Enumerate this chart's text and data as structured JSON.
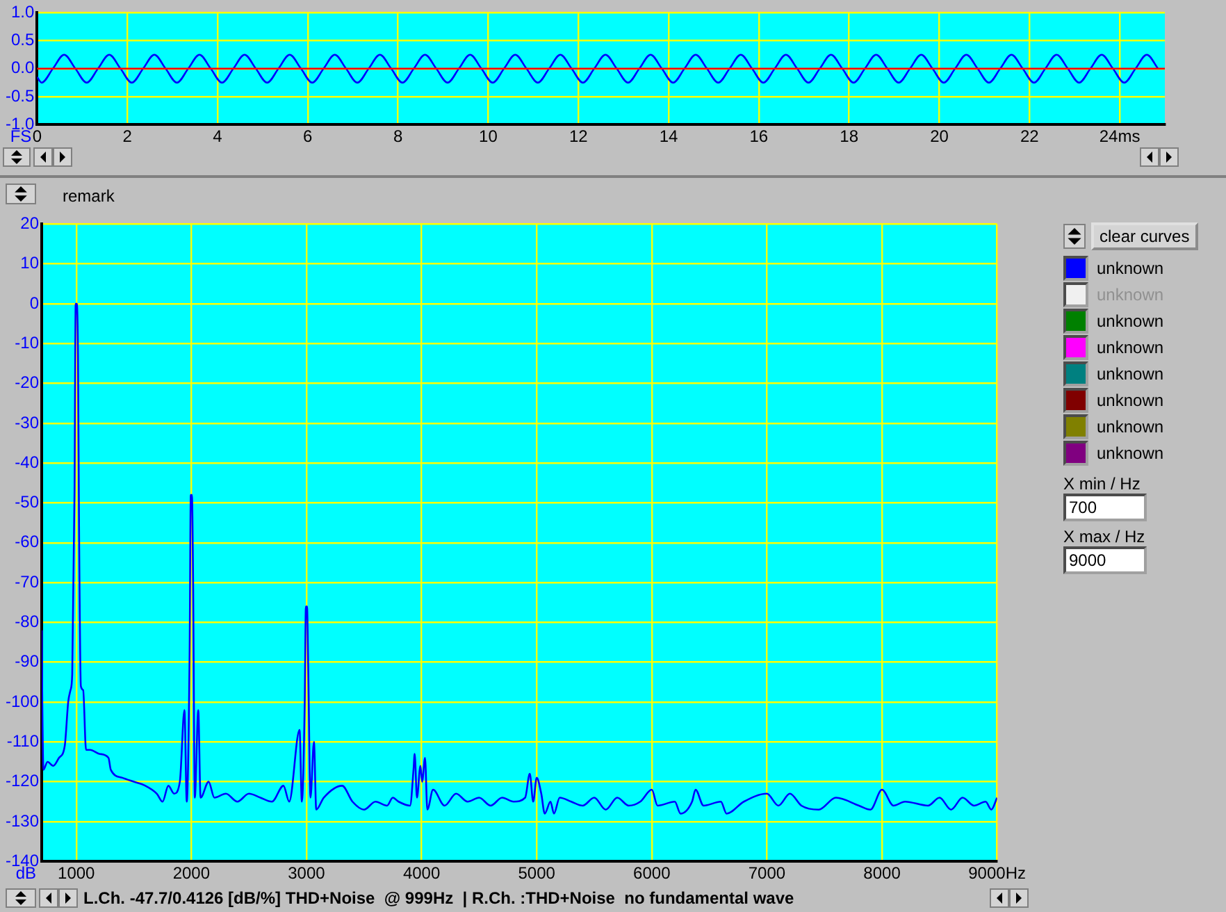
{
  "chart_data": [
    {
      "type": "line",
      "ylabel": "FS",
      "xlim": [
        0,
        25
      ],
      "xticks": [
        0,
        2,
        4,
        6,
        8,
        10,
        12,
        14,
        16,
        18,
        20,
        22,
        {
          "value": 24,
          "label": "24ms"
        }
      ],
      "ylim": [
        -1,
        1
      ],
      "yticks": [
        {
          "value": -1,
          "label": "-1.0"
        },
        {
          "value": -0.5,
          "label": "-0.5"
        },
        {
          "value": 0,
          "label": "0.0"
        },
        {
          "value": 0.5,
          "label": "0.5"
        },
        {
          "value": 1,
          "label": "1.0"
        }
      ],
      "grid": true,
      "ref_lines": [
        {
          "axis": "y",
          "value": 0,
          "color": "#ff0000"
        }
      ],
      "series": [
        {
          "color": "#0000ff",
          "x": [
            0,
            0.1,
            0.35,
            0.6,
            0.85,
            1.1,
            1.35,
            1.6,
            1.85,
            2.1,
            2.35,
            2.6,
            2.85,
            3.1,
            3.35,
            3.6,
            3.85,
            4.1,
            4.35,
            4.6,
            4.85,
            5.1,
            5.35,
            5.6,
            5.85,
            6.1,
            6.35,
            6.6,
            6.85,
            7.1,
            7.35,
            7.6,
            7.85,
            8.1,
            8.35,
            8.6,
            8.85,
            9.1,
            9.35,
            9.6,
            9.85,
            10.1,
            10.35,
            10.6,
            10.85,
            11.1,
            11.35,
            11.6,
            11.85,
            12.1,
            12.35,
            12.6,
            12.85,
            13.1,
            13.35,
            13.6,
            13.85,
            14.1,
            14.35,
            14.6,
            14.85,
            15.1,
            15.35,
            15.6,
            15.85,
            16.1,
            16.35,
            16.6,
            16.85,
            17.1,
            17.35,
            17.6,
            17.85,
            18.1,
            18.35,
            18.6,
            18.85,
            19.1,
            19.35,
            19.6,
            19.85,
            20.1,
            20.35,
            20.6,
            20.85,
            21.1,
            21.35,
            21.6,
            21.85,
            22.1,
            22.35,
            22.6,
            22.85,
            23.1,
            23.35,
            23.6,
            23.85,
            24.1,
            24.35,
            24.6,
            24.85
          ],
          "values": [
            -0.15,
            -0.25,
            0,
            0.25,
            0,
            -0.25,
            0,
            0.25,
            0,
            -0.25,
            0,
            0.25,
            0,
            -0.25,
            0,
            0.25,
            0,
            -0.25,
            0,
            0.25,
            0,
            -0.25,
            0,
            0.25,
            0,
            -0.25,
            0,
            0.25,
            0,
            -0.25,
            0,
            0.25,
            0,
            -0.25,
            0,
            0.25,
            0,
            -0.25,
            0,
            0.25,
            0,
            -0.25,
            0,
            0.25,
            0,
            -0.25,
            0,
            0.25,
            0,
            -0.25,
            0,
            0.25,
            0,
            -0.25,
            0,
            0.25,
            0,
            -0.25,
            0,
            0.25,
            0,
            -0.25,
            0,
            0.25,
            0,
            -0.25,
            0,
            0.25,
            0,
            -0.25,
            0,
            0.25,
            0,
            -0.25,
            0,
            0.25,
            0,
            -0.25,
            0,
            0.25,
            0,
            -0.25,
            0,
            0.25,
            0,
            -0.25,
            0,
            0.25,
            0,
            -0.25,
            0,
            0.25,
            0,
            -0.25,
            0,
            0.25,
            0,
            -0.25,
            0,
            0.25,
            0
          ]
        }
      ]
    },
    {
      "type": "line",
      "ylabel": "dB",
      "xlim": [
        700,
        9000
      ],
      "xticks": [
        1000,
        2000,
        3000,
        4000,
        5000,
        6000,
        7000,
        8000,
        {
          "value": 9000,
          "label": "9000Hz"
        }
      ],
      "ylim": [
        -140,
        20
      ],
      "yticks": [
        -140,
        -130,
        -120,
        -110,
        -100,
        -90,
        -80,
        -70,
        -60,
        -50,
        -40,
        -30,
        -20,
        -10,
        0,
        10,
        20
      ],
      "grid": true,
      "annotations": [
        "L.Ch. -47.7/0.4126 [dB/%] THD+Noise  @ 999Hz  | R.Ch. :THD+Noise  no fundamental wave"
      ],
      "series": [
        {
          "color": "#0000ff",
          "x": [
            700,
            705,
            715,
            750,
            800,
            850,
            900,
            930,
            950,
            965,
            985,
            995,
            1005,
            1015,
            1025,
            1040,
            1060,
            1085,
            1120,
            1200,
            1280,
            1300,
            1400,
            1500,
            1600,
            1700,
            1750,
            1800,
            1850,
            1900,
            1940,
            1960,
            1985,
            1995,
            2005,
            2015,
            2030,
            2060,
            2080,
            2150,
            2200,
            2300,
            2400,
            2500,
            2600,
            2700,
            2800,
            2850,
            2940,
            2960,
            2985,
            2995,
            3005,
            3015,
            3035,
            3065,
            3085,
            3150,
            3310,
            3400,
            3500,
            3600,
            3700,
            3750,
            3800,
            3900,
            3930,
            3940,
            3960,
            3990,
            4005,
            4030,
            4050,
            4100,
            4200,
            4300,
            4400,
            4500,
            4600,
            4700,
            4800,
            4900,
            4940,
            4970,
            5000,
            5040,
            5070,
            5120,
            5150,
            5200,
            5300,
            5400,
            5500,
            5600,
            5700,
            5800,
            5900,
            6000,
            6050,
            6200,
            6250,
            6350,
            6380,
            6450,
            6600,
            6650,
            6800,
            7000,
            7100,
            7200,
            7300,
            7450,
            7600,
            7800,
            7900,
            8000,
            8100,
            8200,
            8400,
            8500,
            8600,
            8700,
            8800,
            8900,
            8950,
            9000
          ],
          "values": [
            -82,
            -100,
            -117,
            -115,
            -116,
            -114,
            -111,
            -100,
            -97,
            -93,
            -47,
            0,
            0,
            -13,
            -59,
            -96,
            -97,
            -112,
            -112,
            -113,
            -114,
            -117,
            -119,
            -120,
            -121,
            -123,
            -125,
            -121,
            -123,
            -120,
            -102,
            -125,
            -87,
            -48,
            -48,
            -69,
            -124,
            -102,
            -124,
            -120,
            -124,
            -123,
            -125,
            -123,
            -124,
            -125,
            -121,
            -125,
            -107,
            -125,
            -100,
            -76,
            -76,
            -91,
            -124,
            -110,
            -127,
            -124,
            -121,
            -125,
            -127,
            -125,
            -126,
            -124,
            -125,
            -126,
            -117,
            -113,
            -124,
            -116,
            -120,
            -114,
            -127,
            -122,
            -126,
            -123,
            -125,
            -124,
            -126,
            -124,
            -125,
            -124,
            -118,
            -125,
            -119,
            -123,
            -128,
            -125,
            -128,
            -124,
            -125,
            -126,
            -124,
            -127,
            -124,
            -126,
            -125,
            -122,
            -126,
            -125,
            -128,
            -125,
            -122,
            -126,
            -125,
            -128,
            -125,
            -123,
            -126,
            -123,
            -126,
            -127,
            -124,
            -126,
            -127,
            -122,
            -126,
            -125,
            -126,
            -124,
            -127,
            -124,
            -126,
            -125,
            -127,
            -124
          ]
        }
      ]
    },
    {
      "type": "other",
      "categories": [
        "unknown",
        "unknown",
        "unknown",
        "unknown",
        "unknown",
        "unknown",
        "unknown",
        "unknown"
      ],
      "colors": [
        "#0000ff",
        "#f0f0f0",
        "#008000",
        "#ff00ff",
        "#008080",
        "#800000",
        "#808000",
        "#800080"
      ],
      "annotations": [
        "remark",
        "clear curves",
        "X min / Hz",
        "700",
        "X max / Hz",
        "9000"
      ]
    }
  ]
}
